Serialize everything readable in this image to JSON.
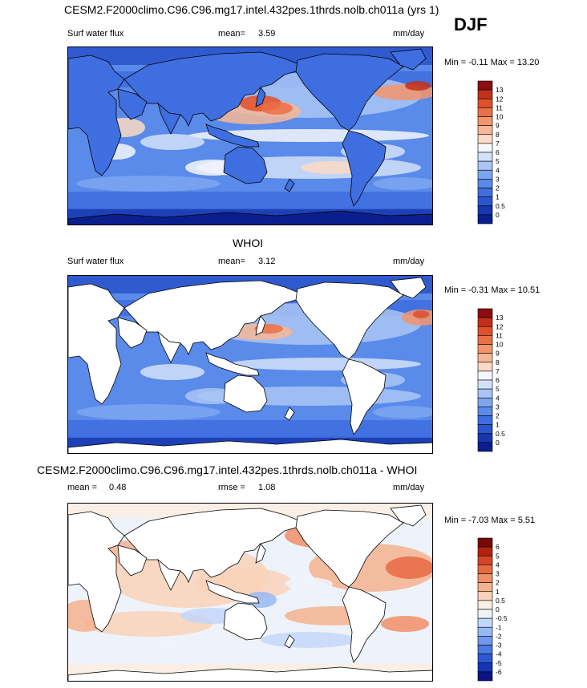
{
  "header": {
    "title": "CESM2.F2000climo.C96.C96.mg17.intel.432pes.1thrds.nolb.ch011a (yrs 1)",
    "season": "DJF"
  },
  "panels": [
    {
      "id": "model",
      "field": "Surf water flux",
      "stat_label": "mean=",
      "stat_value": "3.59",
      "units": "mm/day",
      "minmax": "Min =  -0.11 Max =  13.20"
    },
    {
      "id": "obs",
      "title": "WHOI",
      "field": "Surf water flux",
      "stat_label": "mean=",
      "stat_value": "3.12",
      "units": "mm/day",
      "minmax": "Min =  -0.31 Max =  10.51"
    },
    {
      "id": "diff",
      "title": "CESM2.F2000climo.C96.C96.mg17.intel.432pes.1thrds.nolb.ch011a - WHOI",
      "mean_label": "mean =",
      "mean_value": "0.48",
      "rmse_label": "rmse =",
      "rmse_value": "1.08",
      "units": "mm/day",
      "minmax": "Min =  -7.03 Max =   5.51"
    }
  ],
  "colors": {
    "field_scale": [
      "#0a1f8f",
      "#1637b0",
      "#2b55cc",
      "#3f6ee0",
      "#5a8aea",
      "#7ea6f0",
      "#a9c5f5",
      "#d2e1f9",
      "#f4f7fb",
      "#fbd9c4",
      "#f7b796",
      "#f3956c",
      "#ec7047",
      "#e0502c",
      "#c2301a",
      "#8c0d0d"
    ],
    "diff_scale": [
      "#0a1485",
      "#1536b3",
      "#2f58d4",
      "#4d78e6",
      "#7098ee",
      "#98b8f4",
      "#c3d7f8",
      "#eef3fb",
      "#fbeee2",
      "#f9d2b8",
      "#f5b28e",
      "#f08e66",
      "#e66a42",
      "#d54525",
      "#b3220f",
      "#7a0808"
    ],
    "land": "#ffffff",
    "coast": "#000000"
  },
  "chart_data": [
    {
      "type": "heatmap",
      "title": "Surf water flux",
      "subtitle": "CESM2.F2000climo.C96.C96.mg17.intel.432pes.1thrds.nolb.ch011a (yrs 1) DJF",
      "units": "mm/day",
      "mean": 3.59,
      "min": -0.11,
      "max": 13.2,
      "colorbar_levels": [
        "0",
        "0.5",
        "1",
        "2",
        "3",
        "4",
        "5",
        "6",
        "7",
        "8",
        "9",
        "10",
        "11",
        "12",
        "13"
      ],
      "longitude_range": [
        0,
        360
      ],
      "latitude_range": [
        -90,
        90
      ]
    },
    {
      "type": "heatmap",
      "title": "WHOI Surf water flux",
      "units": "mm/day",
      "mean": 3.12,
      "min": -0.31,
      "max": 10.51,
      "colorbar_levels": [
        "0",
        "0.5",
        "1",
        "2",
        "3",
        "4",
        "5",
        "6",
        "7",
        "8",
        "9",
        "10",
        "11",
        "12",
        "13"
      ],
      "longitude_range": [
        0,
        360
      ],
      "latitude_range": [
        -90,
        90
      ]
    },
    {
      "type": "heatmap",
      "title": "CESM2.F2000climo.C96.C96.mg17.intel.432pes.1thrds.nolb.ch011a - WHOI",
      "units": "mm/day",
      "mean": 0.48,
      "rmse": 1.08,
      "min": -7.03,
      "max": 5.51,
      "colorbar_levels": [
        "-6",
        "-5",
        "-4",
        "-3",
        "-2",
        "-1",
        "-0.5",
        "0",
        "0.5",
        "1",
        "2",
        "3",
        "4",
        "5",
        "6"
      ],
      "longitude_range": [
        0,
        360
      ],
      "latitude_range": [
        -90,
        90
      ]
    }
  ]
}
